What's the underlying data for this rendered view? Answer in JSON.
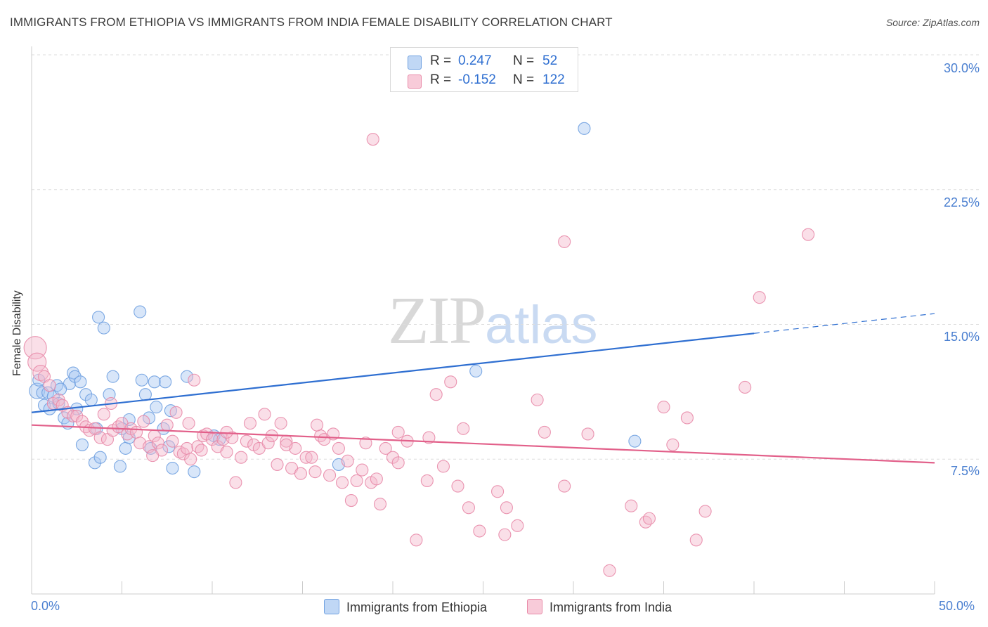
{
  "header": {
    "title": "IMMIGRANTS FROM ETHIOPIA VS IMMIGRANTS FROM INDIA FEMALE DISABILITY CORRELATION CHART",
    "source": "Source: ZipAtlas.com"
  },
  "watermark": {
    "zip": "ZIP",
    "atlas": "atlas"
  },
  "legend": {
    "r_label": "R =",
    "n_label": "N =",
    "rows": [
      {
        "name": "Immigrants from Ethiopia",
        "r": "0.247",
        "n": "52",
        "color": "#a9c8f2"
      },
      {
        "name": "Immigrants from India",
        "r": "-0.152",
        "n": "122",
        "color": "#f5b8cc"
      }
    ]
  },
  "chart_data": {
    "type": "scatter",
    "title": "IMMIGRANTS FROM ETHIOPIA VS IMMIGRANTS FROM INDIA FEMALE DISABILITY CORRELATION CHART",
    "xlabel": "",
    "ylabel": "Female Disability",
    "xlim": [
      0,
      50
    ],
    "ylim": [
      0,
      30
    ],
    "x_tick_labels": [
      "0.0%",
      "50.0%"
    ],
    "y_ticks": [
      7.5,
      15.0,
      22.5,
      30.0
    ],
    "y_tick_labels": [
      "7.5%",
      "15.0%",
      "22.5%",
      "30.0%"
    ],
    "grid": "horizontal dashed",
    "legend_position": "top-center and bottom",
    "series": [
      {
        "name": "Immigrants from Ethiopia",
        "color": "#6fa0e0",
        "fill": "#a9c8f2",
        "trend": {
          "x": [
            0,
            40
          ],
          "y": [
            10.1,
            14.5
          ],
          "dashed_to": [
            50,
            15.6
          ],
          "color": "#2f6fd1"
        },
        "points": [
          [
            0.3,
            11.3
          ],
          [
            0.4,
            11.9
          ],
          [
            0.6,
            11.2
          ],
          [
            0.7,
            10.5
          ],
          [
            0.9,
            11.2
          ],
          [
            1.0,
            10.3
          ],
          [
            1.2,
            11.0
          ],
          [
            1.4,
            11.6
          ],
          [
            1.5,
            10.6
          ],
          [
            1.8,
            9.8
          ],
          [
            2.0,
            9.5
          ],
          [
            2.1,
            11.7
          ],
          [
            2.3,
            12.3
          ],
          [
            2.4,
            12.1
          ],
          [
            2.5,
            10.3
          ],
          [
            2.7,
            11.8
          ],
          [
            2.8,
            8.3
          ],
          [
            3.0,
            11.1
          ],
          [
            3.3,
            10.8
          ],
          [
            3.5,
            7.3
          ],
          [
            3.6,
            9.2
          ],
          [
            3.8,
            7.6
          ],
          [
            4.0,
            14.8
          ],
          [
            4.3,
            11.1
          ],
          [
            4.5,
            12.1
          ],
          [
            4.9,
            7.1
          ],
          [
            5.2,
            8.1
          ],
          [
            5.4,
            8.7
          ],
          [
            5.4,
            9.7
          ],
          [
            6.0,
            15.7
          ],
          [
            6.1,
            11.9
          ],
          [
            6.3,
            11.1
          ],
          [
            6.5,
            9.8
          ],
          [
            6.6,
            8.1
          ],
          [
            6.8,
            11.8
          ],
          [
            6.9,
            10.4
          ],
          [
            7.3,
            9.2
          ],
          [
            7.4,
            11.8
          ],
          [
            7.6,
            8.2
          ],
          [
            7.7,
            10.2
          ],
          [
            7.8,
            7.0
          ],
          [
            8.6,
            12.1
          ],
          [
            9.0,
            6.8
          ],
          [
            10.1,
            8.8
          ],
          [
            10.4,
            8.6
          ],
          [
            3.7,
            15.4
          ],
          [
            24.6,
            12.4
          ],
          [
            17.0,
            7.2
          ],
          [
            30.6,
            25.9
          ],
          [
            33.4,
            8.5
          ],
          [
            1.6,
            11.4
          ],
          [
            5.0,
            9.2
          ]
        ]
      },
      {
        "name": "Immigrants from India",
        "color": "#e88aa8",
        "fill": "#f5b8cc",
        "trend": {
          "x": [
            0,
            50
          ],
          "y": [
            9.4,
            7.3
          ],
          "color": "#e2608a"
        },
        "points": [
          [
            0.2,
            13.7
          ],
          [
            0.3,
            12.9
          ],
          [
            0.5,
            12.3
          ],
          [
            0.7,
            12.1
          ],
          [
            1.0,
            11.6
          ],
          [
            1.2,
            10.6
          ],
          [
            1.5,
            10.8
          ],
          [
            1.7,
            10.5
          ],
          [
            2.0,
            10.1
          ],
          [
            2.3,
            9.9
          ],
          [
            2.5,
            9.9
          ],
          [
            2.8,
            9.6
          ],
          [
            3.0,
            9.3
          ],
          [
            3.2,
            9.1
          ],
          [
            3.5,
            9.2
          ],
          [
            3.8,
            8.7
          ],
          [
            4.0,
            10.0
          ],
          [
            4.2,
            8.6
          ],
          [
            4.5,
            9.1
          ],
          [
            4.8,
            9.3
          ],
          [
            5.0,
            9.5
          ],
          [
            5.3,
            8.9
          ],
          [
            5.5,
            9.2
          ],
          [
            5.8,
            9.0
          ],
          [
            6.0,
            8.4
          ],
          [
            6.2,
            9.6
          ],
          [
            6.5,
            8.2
          ],
          [
            6.8,
            8.8
          ],
          [
            7.0,
            8.4
          ],
          [
            7.2,
            8.0
          ],
          [
            7.5,
            9.4
          ],
          [
            7.8,
            8.5
          ],
          [
            8.0,
            10.1
          ],
          [
            8.2,
            7.9
          ],
          [
            8.4,
            7.8
          ],
          [
            8.6,
            8.1
          ],
          [
            8.8,
            7.5
          ],
          [
            9.0,
            11.9
          ],
          [
            9.2,
            8.2
          ],
          [
            9.5,
            8.8
          ],
          [
            9.7,
            8.9
          ],
          [
            10.0,
            8.6
          ],
          [
            10.3,
            8.2
          ],
          [
            10.6,
            8.6
          ],
          [
            10.8,
            7.9
          ],
          [
            11.1,
            8.7
          ],
          [
            11.3,
            6.2
          ],
          [
            11.6,
            7.6
          ],
          [
            11.9,
            8.5
          ],
          [
            12.1,
            9.5
          ],
          [
            12.3,
            8.3
          ],
          [
            12.6,
            8.1
          ],
          [
            12.9,
            10.0
          ],
          [
            13.1,
            8.4
          ],
          [
            13.3,
            8.8
          ],
          [
            13.6,
            7.2
          ],
          [
            13.8,
            9.5
          ],
          [
            14.1,
            8.5
          ],
          [
            14.4,
            7.0
          ],
          [
            14.6,
            8.1
          ],
          [
            14.9,
            6.7
          ],
          [
            15.2,
            7.6
          ],
          [
            15.5,
            7.6
          ],
          [
            15.7,
            6.8
          ],
          [
            16.0,
            8.8
          ],
          [
            16.2,
            8.6
          ],
          [
            16.5,
            6.6
          ],
          [
            16.7,
            8.9
          ],
          [
            17.0,
            8.1
          ],
          [
            17.2,
            6.2
          ],
          [
            17.5,
            7.4
          ],
          [
            17.7,
            5.2
          ],
          [
            18.0,
            6.3
          ],
          [
            18.3,
            6.9
          ],
          [
            18.5,
            8.4
          ],
          [
            18.8,
            6.2
          ],
          [
            19.1,
            6.4
          ],
          [
            19.3,
            5.0
          ],
          [
            19.6,
            8.1
          ],
          [
            20.0,
            7.6
          ],
          [
            20.3,
            7.3
          ],
          [
            20.8,
            8.5
          ],
          [
            21.3,
            3.0
          ],
          [
            21.9,
            6.3
          ],
          [
            22.4,
            11.1
          ],
          [
            22.8,
            7.1
          ],
          [
            23.2,
            11.8
          ],
          [
            23.6,
            6.0
          ],
          [
            23.9,
            9.2
          ],
          [
            24.2,
            4.8
          ],
          [
            24.8,
            3.5
          ],
          [
            25.8,
            5.7
          ],
          [
            26.3,
            4.8
          ],
          [
            26.9,
            3.8
          ],
          [
            28.0,
            10.8
          ],
          [
            28.4,
            9.0
          ],
          [
            29.5,
            6.0
          ],
          [
            30.8,
            8.9
          ],
          [
            32.0,
            1.3
          ],
          [
            33.2,
            4.9
          ],
          [
            34.0,
            4.0
          ],
          [
            34.2,
            4.2
          ],
          [
            35.0,
            10.4
          ],
          [
            35.5,
            8.3
          ],
          [
            36.3,
            9.8
          ],
          [
            36.8,
            3.0
          ],
          [
            37.3,
            4.6
          ],
          [
            39.5,
            11.5
          ],
          [
            40.3,
            16.5
          ],
          [
            43.0,
            20.0
          ],
          [
            29.5,
            19.6
          ],
          [
            18.9,
            25.3
          ],
          [
            8.7,
            9.5
          ],
          [
            9.4,
            8.0
          ],
          [
            10.8,
            9.0
          ],
          [
            14.1,
            8.3
          ],
          [
            15.8,
            9.4
          ],
          [
            6.7,
            7.7
          ],
          [
            26.2,
            3.3
          ],
          [
            20.3,
            9.0
          ],
          [
            4.4,
            10.6
          ],
          [
            22.0,
            8.7
          ]
        ]
      }
    ]
  }
}
